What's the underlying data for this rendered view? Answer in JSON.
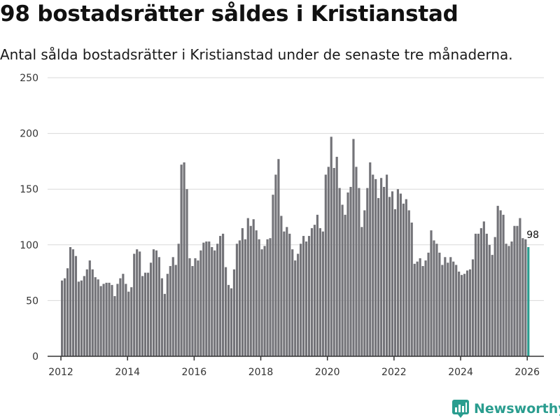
{
  "header": {
    "title": "98 bostadsrätter såldes i Kristianstad",
    "subtitle": "Antal sålda bostadsrätter i Kristianstad under de senaste tre månaderna."
  },
  "brand": {
    "name": "Newsworthy",
    "icon": "newsworthy-logo-icon",
    "color": "#2a9d8f"
  },
  "chart_data": {
    "type": "bar",
    "title": "98 bostadsrätter såldes i Kristianstad",
    "xlabel": "",
    "ylabel": "",
    "ylim": [
      0,
      250
    ],
    "yticks": [
      0,
      50,
      100,
      150,
      200,
      250
    ],
    "xlim": [
      2011.6,
      2026.5
    ],
    "xticks": [
      2012,
      2014,
      2016,
      2018,
      2020,
      2022,
      2024,
      2026
    ],
    "grid": true,
    "bar_color": "#737378",
    "highlight_color": "#2a9d8f",
    "start_year": 2012,
    "start_month": 1,
    "values": [
      68,
      70,
      79,
      98,
      96,
      90,
      67,
      68,
      72,
      78,
      86,
      78,
      71,
      69,
      63,
      65,
      66,
      66,
      64,
      54,
      65,
      70,
      74,
      65,
      58,
      62,
      92,
      96,
      94,
      72,
      75,
      75,
      84,
      96,
      95,
      89,
      70,
      56,
      74,
      81,
      89,
      82,
      101,
      172,
      174,
      150,
      88,
      81,
      88,
      86,
      95,
      102,
      103,
      103,
      98,
      95,
      101,
      108,
      110,
      80,
      64,
      61,
      78,
      101,
      104,
      115,
      105,
      124,
      117,
      123,
      113,
      105,
      96,
      99,
      105,
      106,
      145,
      163,
      177,
      126,
      112,
      116,
      110,
      96,
      86,
      92,
      101,
      108,
      103,
      108,
      115,
      118,
      127,
      115,
      112,
      163,
      170,
      197,
      169,
      179,
      151,
      136,
      127,
      147,
      152,
      195,
      170,
      151,
      116,
      131,
      151,
      174,
      163,
      159,
      142,
      160,
      152,
      163,
      143,
      148,
      132,
      150,
      146,
      137,
      141,
      131,
      120,
      83,
      85,
      88,
      81,
      86,
      93,
      113,
      104,
      101,
      93,
      82,
      89,
      84,
      89,
      85,
      82,
      76,
      73,
      74,
      77,
      78,
      87,
      110,
      110,
      115,
      121,
      110,
      100,
      91,
      107,
      135,
      131,
      127,
      101,
      99,
      103,
      117,
      117,
      124,
      106,
      105,
      98
    ],
    "highlight": {
      "label": "98",
      "value": 98,
      "index": "last"
    }
  }
}
